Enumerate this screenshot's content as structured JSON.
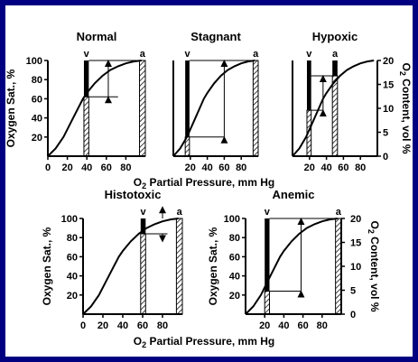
{
  "chart_data": [
    {
      "type": "line",
      "panel": "top-left",
      "title": "Normal",
      "xlim": [
        0,
        100
      ],
      "ylim": [
        0,
        100
      ],
      "xticks": [
        0,
        20,
        40,
        60,
        80
      ],
      "yticks": [
        20,
        40,
        60,
        80,
        100
      ],
      "ylabel": "Oxygen Sat., %",
      "ylabel_sub": "",
      "y2label": "",
      "y2ticks": [],
      "y2lim": [
        0,
        20
      ],
      "curve": {
        "x": [
          0,
          8,
          16,
          24,
          30,
          36,
          40,
          48,
          56,
          64,
          72,
          80,
          88,
          96
        ],
        "y": [
          0,
          8,
          20,
          36,
          48,
          60,
          66,
          76,
          84,
          90,
          94,
          97,
          99,
          100
        ]
      },
      "venous_bar": {
        "x_from": 37,
        "x_to": 42,
        "y_top": 100,
        "split_y": 62,
        "label": "v"
      },
      "arterial_bar": {
        "x_from": 94,
        "x_to": 100,
        "y_top": 100,
        "label": "a"
      },
      "guide_lines": [
        [
          42,
          62,
          72,
          62
        ],
        [
          42,
          100,
          100,
          100
        ]
      ],
      "arrows": [
        {
          "x": 62,
          "from": 62,
          "to": 100
        }
      ]
    },
    {
      "type": "line",
      "panel": "top-middle",
      "title": "Stagnant",
      "xlim": [
        0,
        100
      ],
      "ylim": [
        0,
        100
      ],
      "xticks": [
        20,
        40,
        60,
        80
      ],
      "yticks": [],
      "ylabel": "",
      "ylabel_sub": "",
      "y2label": "",
      "y2ticks": [],
      "y2lim": [
        0,
        20
      ],
      "curve": {
        "x": [
          0,
          8,
          16,
          24,
          30,
          36,
          40,
          48,
          56,
          64,
          72,
          80,
          88,
          96
        ],
        "y": [
          0,
          8,
          20,
          36,
          48,
          60,
          66,
          76,
          84,
          90,
          94,
          97,
          99,
          100
        ]
      },
      "venous_bar": {
        "x_from": 14,
        "x_to": 19,
        "y_top": 100,
        "split_y": 20,
        "label": "v"
      },
      "arterial_bar": {
        "x_from": 94,
        "x_to": 100,
        "y_top": 100,
        "label": "a"
      },
      "guide_lines": [
        [
          19,
          20,
          60,
          20
        ],
        [
          19,
          100,
          100,
          100
        ]
      ],
      "arrows": [
        {
          "x": 60,
          "from": 20,
          "to": 100
        }
      ]
    },
    {
      "type": "line",
      "panel": "top-right",
      "title": "Hypoxic",
      "xlim": [
        0,
        100
      ],
      "ylim": [
        0,
        100
      ],
      "xticks": [
        20,
        40,
        60,
        80
      ],
      "yticks": [],
      "ylabel": "",
      "ylabel_sub": "",
      "y2label": "O2 Content, vol %",
      "y2ticks": [
        0,
        5,
        10,
        15,
        20
      ],
      "y2lim": [
        0,
        20
      ],
      "curve": {
        "x": [
          0,
          8,
          16,
          24,
          30,
          36,
          40,
          48,
          56,
          64,
          72,
          80,
          88,
          96
        ],
        "y": [
          0,
          8,
          20,
          36,
          48,
          60,
          66,
          76,
          84,
          90,
          94,
          97,
          99,
          100
        ]
      },
      "venous_bar": {
        "x_from": 17,
        "x_to": 22,
        "y_top": 100,
        "split_y": 48,
        "label": "v"
      },
      "arterial_bar": {
        "x_from": 47,
        "x_to": 53,
        "y_top": 100,
        "split_y": 84,
        "label": "a"
      },
      "guide_lines": [
        [
          22,
          48,
          36,
          48
        ],
        [
          22,
          84,
          53,
          84
        ]
      ],
      "arrows": [
        {
          "x": 36,
          "from": 48,
          "to": 84
        }
      ]
    },
    {
      "type": "line",
      "panel": "bottom-left",
      "title": "Histotoxic",
      "xlim": [
        0,
        100
      ],
      "ylim": [
        0,
        100
      ],
      "xticks": [
        0,
        20,
        40,
        60,
        80
      ],
      "yticks": [
        20,
        40,
        60,
        80,
        100
      ],
      "ylabel": "Oxygen Sat., %",
      "ylabel_sub": "",
      "y2label": "",
      "y2ticks": [],
      "y2lim": [
        0,
        20
      ],
      "curve": {
        "x": [
          0,
          8,
          16,
          24,
          30,
          36,
          40,
          48,
          56,
          64,
          72,
          80,
          88,
          96
        ],
        "y": [
          0,
          8,
          20,
          36,
          48,
          60,
          66,
          76,
          84,
          90,
          94,
          97,
          99,
          100
        ]
      },
      "venous_bar": {
        "x_from": 58,
        "x_to": 63,
        "y_top": 100,
        "split_y": 84,
        "label": "v"
      },
      "arterial_bar": {
        "x_from": 94,
        "x_to": 100,
        "y_top": 100,
        "label": "a"
      },
      "guide_lines": [
        [
          63,
          84,
          85,
          84
        ]
      ],
      "arrows": [
        {
          "x": 80,
          "from": 100,
          "to": 112
        },
        {
          "x": 80,
          "from": 84,
          "to": 76
        }
      ]
    },
    {
      "type": "line",
      "panel": "bottom-right",
      "title": "Anemic",
      "xlim": [
        0,
        100
      ],
      "ylim": [
        0,
        50
      ],
      "xticks": [
        20,
        40,
        60,
        80
      ],
      "yticks": [
        20,
        40,
        60,
        80,
        100
      ],
      "yticks_values": [
        10,
        20,
        30,
        40,
        50
      ],
      "ylabel": "Oxygen Sat., %",
      "ylabel_sub": "",
      "y2label": "O2 Content, vol %",
      "y2ticks": [
        0,
        5,
        10,
        15,
        20
      ],
      "y2lim": [
        0,
        20
      ],
      "curve": {
        "x": [
          0,
          8,
          16,
          24,
          30,
          36,
          40,
          48,
          56,
          64,
          72,
          80,
          88,
          96
        ],
        "y": [
          0,
          4,
          10,
          18,
          24,
          30,
          33,
          38,
          42,
          45,
          47,
          48.5,
          49.5,
          50
        ]
      },
      "venous_bar": {
        "x_from": 20,
        "x_to": 25,
        "y_top": 50,
        "split_y": 12,
        "label": "v"
      },
      "arterial_bar": {
        "x_from": 94,
        "x_to": 100,
        "y_top": 50,
        "label": "a"
      },
      "guide_lines": [
        [
          25,
          12,
          58,
          12
        ],
        [
          25,
          50,
          100,
          50
        ]
      ],
      "arrows": [
        {
          "x": 58,
          "from": 12,
          "to": 50
        }
      ]
    }
  ],
  "xlabel": "O2 Partial Pressure, mm Hg",
  "colors": {
    "frame": "#000080",
    "plot": "#000000",
    "background": "#ffffff"
  }
}
